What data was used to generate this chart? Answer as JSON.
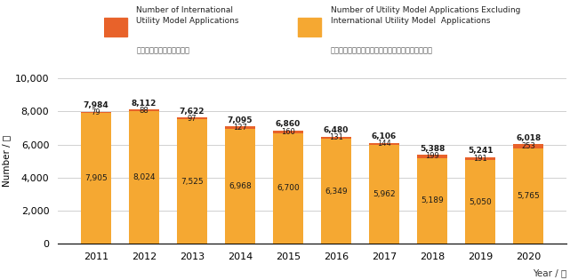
{
  "years": [
    2011,
    2012,
    2013,
    2014,
    2015,
    2016,
    2017,
    2018,
    2019,
    2020
  ],
  "total": [
    7984,
    8112,
    7622,
    7095,
    6860,
    6480,
    6106,
    5388,
    5241,
    6018
  ],
  "domestic": [
    7905,
    8024,
    7525,
    6968,
    6700,
    6349,
    5962,
    5189,
    5050,
    5765
  ],
  "international": [
    79,
    88,
    97,
    127,
    160,
    131,
    144,
    199,
    191,
    253
  ],
  "color_domestic": "#F5A832",
  "color_international": "#E8622A",
  "ylabel": "Number / 件",
  "xlabel": "Year / 年",
  "ylim": [
    0,
    10000
  ],
  "yticks": [
    0,
    2000,
    4000,
    6000,
    8000,
    10000
  ],
  "legend1_en": "Number of International\nUtility Model Applications",
  "legend1_jp": "国際実用新案登録出願件数",
  "legend2_en": "Number of Utility Model Applications Excluding\nInternational Utility Model  Applications",
  "legend2_jp": "国際実用新案登録出願を除く実用新案登録出願件数",
  "grid_color": "#d0d0d0",
  "text_dark": "#1a1a1a",
  "text_domestic": "#4a2000"
}
